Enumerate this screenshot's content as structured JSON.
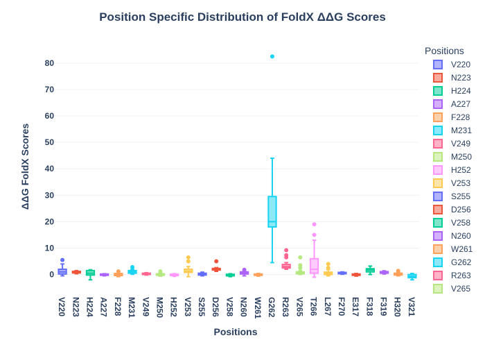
{
  "chart_data": {
    "type": "box",
    "title": "Position Specific Distribution of FoldX ΔΔG Scores",
    "xlabel": "Positions",
    "ylabel": "ΔΔG FoldX Scores",
    "ylim": [
      -3,
      86
    ],
    "yticks": [
      0,
      10,
      20,
      30,
      40,
      50,
      60,
      70,
      80
    ],
    "grid": true,
    "legend_title": "Positions",
    "legend_position": "right",
    "series": [
      {
        "name": "V220",
        "color": "#636efa",
        "min": -0.5,
        "q1": 0.2,
        "median": 1.0,
        "q3": 2.0,
        "max": 4.0,
        "outliers": [
          5.5
        ]
      },
      {
        "name": "N223",
        "color": "#ef553b",
        "min": 0.3,
        "q1": 0.6,
        "median": 0.9,
        "q3": 1.2,
        "max": 1.5,
        "outliers": []
      },
      {
        "name": "H224",
        "color": "#00cc96",
        "min": -2.0,
        "q1": -0.2,
        "median": 0.5,
        "q3": 1.5,
        "max": 1.8,
        "outliers": []
      },
      {
        "name": "A227",
        "color": "#ab63fa",
        "min": -0.5,
        "q1": -0.3,
        "median": 0.0,
        "q3": 0.2,
        "max": 0.3,
        "outliers": []
      },
      {
        "name": "F228",
        "color": "#ffa15a",
        "min": -0.8,
        "q1": -0.4,
        "median": 0.0,
        "q3": 0.4,
        "max": 1.0,
        "outliers": [
          1.2
        ]
      },
      {
        "name": "M231",
        "color": "#19d3f3",
        "min": 0.1,
        "q1": 0.5,
        "median": 1.0,
        "q3": 1.5,
        "max": 2.0,
        "outliers": [
          2.8
        ]
      },
      {
        "name": "V249",
        "color": "#ff6692",
        "min": -0.2,
        "q1": 0.0,
        "median": 0.3,
        "q3": 0.5,
        "max": 0.7,
        "outliers": []
      },
      {
        "name": "M250",
        "color": "#b6e880",
        "min": -0.6,
        "q1": -0.3,
        "median": 0.0,
        "q3": 0.3,
        "max": 0.8,
        "outliers": [
          1.2
        ]
      },
      {
        "name": "H252",
        "color": "#ff97ff",
        "min": -0.7,
        "q1": -0.4,
        "median": -0.1,
        "q3": 0.1,
        "max": 0.3,
        "outliers": []
      },
      {
        "name": "V253",
        "color": "#fecb52",
        "min": -0.8,
        "q1": 0.8,
        "median": 1.3,
        "q3": 2.0,
        "max": 3.0,
        "outliers": [
          5.0,
          6.5
        ]
      },
      {
        "name": "S255",
        "color": "#636efa",
        "min": -0.5,
        "q1": -0.2,
        "median": 0.2,
        "q3": 0.5,
        "max": 0.9,
        "outliers": []
      },
      {
        "name": "D256",
        "color": "#ef553b",
        "min": 1.2,
        "q1": 1.7,
        "median": 2.0,
        "q3": 2.3,
        "max": 2.6,
        "outliers": [
          5.0
        ]
      },
      {
        "name": "V258",
        "color": "#00cc96",
        "min": -0.8,
        "q1": -0.5,
        "median": -0.2,
        "q3": 0.1,
        "max": 0.3,
        "outliers": []
      },
      {
        "name": "N260",
        "color": "#ab63fa",
        "min": -0.5,
        "q1": 0.2,
        "median": 0.7,
        "q3": 1.0,
        "max": 1.4,
        "outliers": [
          1.8
        ]
      },
      {
        "name": "W261",
        "color": "#ffa15a",
        "min": -0.6,
        "q1": -0.3,
        "median": 0.0,
        "q3": 0.2,
        "max": 0.4,
        "outliers": []
      },
      {
        "name": "G262",
        "color": "#19d3f3",
        "min": 4.5,
        "q1": 18.0,
        "median": 20.0,
        "q3": 29.5,
        "max": 44.0,
        "outliers": [
          82.5
        ]
      },
      {
        "name": "R263",
        "color": "#ff6692",
        "min": 2.0,
        "q1": 2.5,
        "median": 3.0,
        "q3": 3.8,
        "max": 4.5,
        "outliers": [
          6.5,
          7.3,
          9.2
        ]
      },
      {
        "name": "V265",
        "color": "#b6e880",
        "min": 0.0,
        "q1": 0.3,
        "median": 0.6,
        "q3": 1.0,
        "max": 1.5,
        "outliers": [
          2.5,
          3.5,
          6.5
        ]
      },
      {
        "name": "T266",
        "color": "#ff97ff",
        "min": -1.0,
        "q1": 0.5,
        "median": 2.0,
        "q3": 6.0,
        "max": 13.0,
        "outliers": [
          15.0,
          19.0
        ]
      },
      {
        "name": "L267",
        "color": "#fecb52",
        "min": -0.5,
        "q1": 0.0,
        "median": 0.4,
        "q3": 0.9,
        "max": 1.8,
        "outliers": [
          2.5,
          4.0
        ]
      },
      {
        "name": "F270",
        "color": "#636efa",
        "min": 0.1,
        "q1": 0.3,
        "median": 0.6,
        "q3": 0.8,
        "max": 1.0,
        "outliers": []
      },
      {
        "name": "E317",
        "color": "#ef553b",
        "min": -0.6,
        "q1": -0.3,
        "median": 0.0,
        "q3": 0.2,
        "max": 0.4,
        "outliers": []
      },
      {
        "name": "F318",
        "color": "#00cc96",
        "min": 0.0,
        "q1": 1.0,
        "median": 1.7,
        "q3": 2.2,
        "max": 3.2,
        "outliers": []
      },
      {
        "name": "F319",
        "color": "#ab63fa",
        "min": 0.2,
        "q1": 0.5,
        "median": 0.8,
        "q3": 1.1,
        "max": 1.4,
        "outliers": []
      },
      {
        "name": "H320",
        "color": "#ffa15a",
        "min": -0.5,
        "q1": -0.2,
        "median": 0.2,
        "q3": 0.5,
        "max": 0.9,
        "outliers": [
          1.4
        ]
      },
      {
        "name": "V321",
        "color": "#19d3f3",
        "min": -2.0,
        "q1": -1.2,
        "median": -0.7,
        "q3": 0.0,
        "max": 0.4,
        "outliers": []
      }
    ]
  }
}
